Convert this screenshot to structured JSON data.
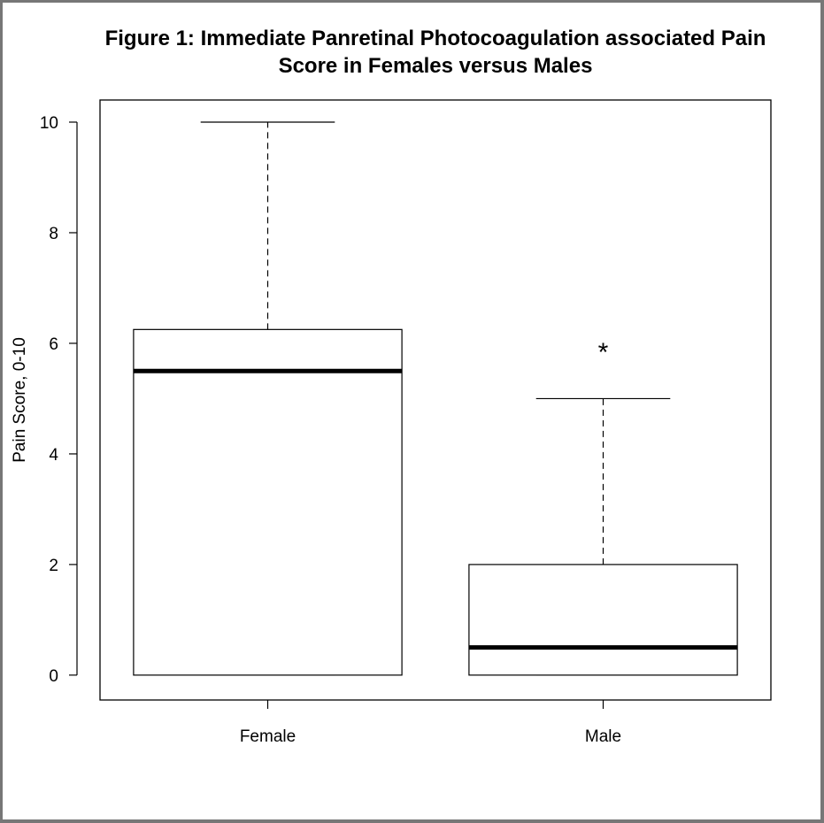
{
  "chart_data": {
    "type": "boxplot",
    "title_lines": [
      "Figure 1: Immediate Panretinal Photocoagulation associated Pain",
      "Score in Females versus Males"
    ],
    "xlabel": "",
    "ylabel": "Pain Score, 0-10",
    "ylim": [
      -0.45,
      10.4
    ],
    "yticks": [
      0,
      2,
      4,
      6,
      8,
      10
    ],
    "categories": [
      "Female",
      "Male"
    ],
    "boxes": [
      {
        "name": "Female",
        "min": 0,
        "q1": 0,
        "median": 5.5,
        "q3": 6.25,
        "max": 10,
        "outliers": []
      },
      {
        "name": "Male",
        "min": 0,
        "q1": 0,
        "median": 0.5,
        "q3": 2,
        "max": 5,
        "outliers": []
      }
    ],
    "annotations": [
      {
        "text": "*",
        "category": "Male",
        "y": 6
      }
    ],
    "grid": false,
    "legend": "none"
  }
}
